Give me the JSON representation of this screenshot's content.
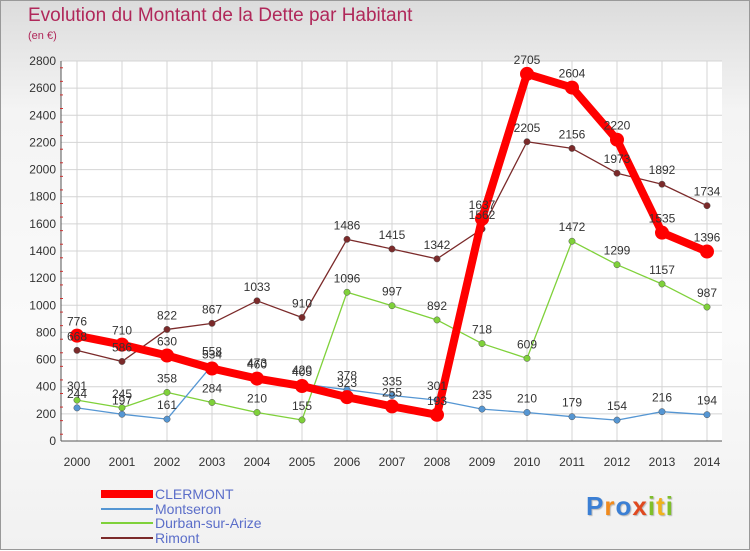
{
  "title": "Evolution du Montant de la Dette par Habitant",
  "unit": "(en €)",
  "logo": {
    "text": "Proxiti"
  },
  "chart_data": {
    "type": "line",
    "x": [
      "2000",
      "2001",
      "2002",
      "2003",
      "2004",
      "2005",
      "2006",
      "2007",
      "2008",
      "2009",
      "2010",
      "2011",
      "2012",
      "2013",
      "2014"
    ],
    "ylim": [
      0,
      2800
    ],
    "yticks": [
      0,
      200,
      400,
      600,
      800,
      1000,
      1200,
      1400,
      1600,
      1800,
      2000,
      2200,
      2400,
      2600,
      2800
    ],
    "grid": true,
    "legend_position": "bottom-left",
    "series": [
      {
        "name": "CLERMONT",
        "color": "#ff0000",
        "values": [
          776,
          710,
          630,
          534,
          460,
          405,
          323,
          255,
          193,
          1637,
          2705,
          2604,
          2220,
          1535,
          1396
        ],
        "labels": [
          "776",
          "710",
          "630",
          "534",
          "460",
          "405",
          "323",
          "255",
          "193",
          "1637",
          "2705",
          "2604",
          "2220",
          "1535",
          "1396"
        ]
      },
      {
        "name": "Montseron",
        "color": "#5596d3",
        "values": [
          244,
          197,
          161,
          558,
          473,
          420,
          378,
          335,
          301,
          235,
          210,
          179,
          154,
          216,
          194
        ],
        "labels": [
          "244",
          "197",
          "161",
          "558",
          "473",
          "420",
          "378",
          "335",
          "301",
          "235",
          "210",
          "179",
          "154",
          "216",
          "194"
        ]
      },
      {
        "name": "Durban-sur-Arize",
        "color": "#7fd13a",
        "values": [
          301,
          245,
          358,
          284,
          210,
          155,
          1096,
          997,
          892,
          718,
          609,
          1472,
          1299,
          1157,
          987
        ],
        "labels": [
          "301",
          "245",
          "358",
          "284",
          "210",
          "155",
          "1096",
          "997",
          "892",
          "718",
          "609",
          "1472",
          "1299",
          "1157",
          "987"
        ]
      },
      {
        "name": "Rimont",
        "color": "#7b2a2a",
        "values": [
          668,
          586,
          822,
          867,
          1033,
          910,
          1486,
          1415,
          1342,
          1562,
          2205,
          2156,
          1973,
          1892,
          1734
        ],
        "labels": [
          "668",
          "586",
          "822",
          "867",
          "1033",
          "910",
          "1486",
          "1415",
          "1342",
          "1562",
          "2205",
          "2156",
          "1973",
          "1892",
          "1734"
        ]
      }
    ]
  }
}
